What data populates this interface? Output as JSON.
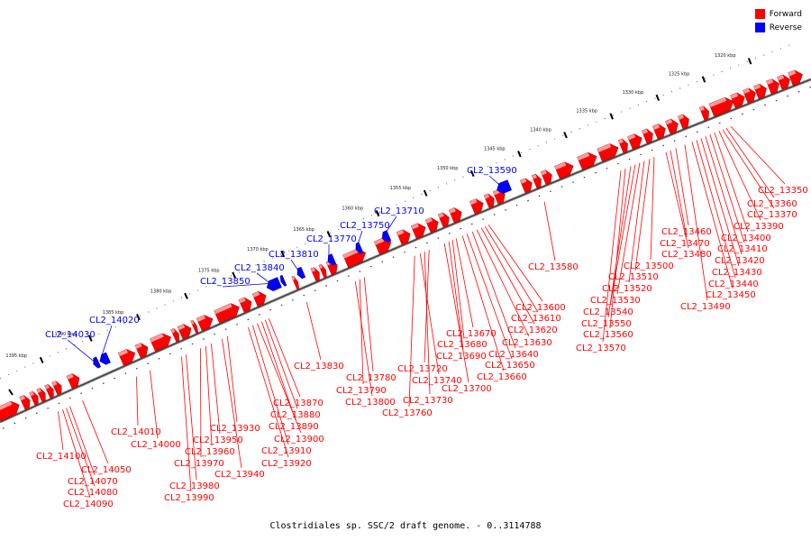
{
  "legend": {
    "forward": {
      "label": "Forward",
      "color": "#ff0000"
    },
    "reverse": {
      "label": "Reverse",
      "color": "#0000ff"
    }
  },
  "caption": "Clostridiales sp. SSC/2 draft genome. - 0..3114788",
  "scale_ticks": [
    "1320 kbp",
    "1325 kbp",
    "1330 kbp",
    "1335 kbp",
    "1340 kbp",
    "1345 kbp",
    "1350 kbp",
    "1355 kbp",
    "1360 kbp",
    "1365 kbp",
    "1370 kbp",
    "1375 kbp",
    "1380 kbp",
    "1385 kbp",
    "1390 kbp",
    "1395 kbp"
  ],
  "forward_genes": [
    "CL2_13350",
    "CL2_13360",
    "CL2_13370",
    "CL2_13390",
    "CL2_13400",
    "CL2_13410",
    "CL2_13420",
    "CL2_13430",
    "CL2_13440",
    "CL2_13450",
    "CL2_13460",
    "CL2_13470",
    "CL2_13480",
    "CL2_13490",
    "CL2_13500",
    "CL2_13510",
    "CL2_13520",
    "CL2_13530",
    "CL2_13540",
    "CL2_13550",
    "CL2_13560",
    "CL2_13570",
    "CL2_13580",
    "CL2_13600",
    "CL2_13610",
    "CL2_13620",
    "CL2_13630",
    "CL2_13640",
    "CL2_13650",
    "CL2_13660",
    "CL2_13670",
    "CL2_13680",
    "CL2_13690",
    "CL2_13700",
    "CL2_13720",
    "CL2_13730",
    "CL2_13740",
    "CL2_13760",
    "CL2_13780",
    "CL2_13790",
    "CL2_13800",
    "CL2_13830",
    "CL2_13870",
    "CL2_13880",
    "CL2_13890",
    "CL2_13900",
    "CL2_13910",
    "CL2_13920",
    "CL2_13930",
    "CL2_13940",
    "CL2_13950",
    "CL2_13960",
    "CL2_13970",
    "CL2_13980",
    "CL2_13990",
    "CL2_14000",
    "CL2_14010",
    "CL2_14050",
    "CL2_14070",
    "CL2_14080",
    "CL2_14090",
    "CL2_14100"
  ],
  "reverse_genes": [
    "CL2_13590",
    "CL2_13710",
    "CL2_13750",
    "CL2_13770",
    "CL2_13810",
    "CL2_13840",
    "CL2_13850",
    "CL2_14020",
    "CL2_14030"
  ]
}
